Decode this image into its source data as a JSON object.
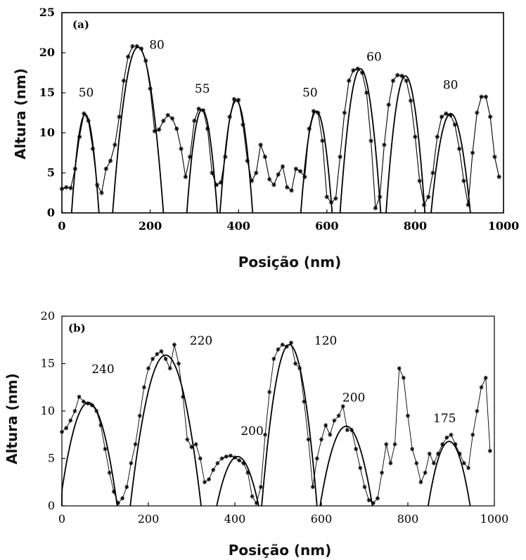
{
  "chart_data": [
    {
      "type": "scatter",
      "panel_label": "(a)",
      "xlabel": "Posição (nm)",
      "ylabel": "Altura (nm)",
      "xlim": [
        0,
        1000
      ],
      "ylim": [
        0,
        25
      ],
      "xticks": [
        0,
        200,
        400,
        600,
        800,
        1000
      ],
      "yticks": [
        0,
        5,
        10,
        15,
        20,
        25
      ],
      "grid": false,
      "series": [
        {
          "kind": "measured-points",
          "x": [
            0,
            10,
            20,
            30,
            40,
            50,
            60,
            70,
            80,
            90,
            100,
            110,
            120,
            130,
            140,
            150,
            160,
            170,
            180,
            190,
            200,
            210,
            220,
            230,
            240,
            250,
            260,
            270,
            280,
            290,
            300,
            310,
            320,
            330,
            340,
            350,
            360,
            370,
            380,
            390,
            400,
            410,
            420,
            430,
            440,
            450,
            460,
            470,
            480,
            490,
            500,
            510,
            520,
            530,
            540,
            550,
            560,
            570,
            580,
            590,
            600,
            610,
            620,
            630,
            640,
            650,
            660,
            670,
            680,
            690,
            700,
            710,
            720,
            730,
            740,
            750,
            760,
            770,
            780,
            790,
            800,
            810,
            820,
            830,
            840,
            850,
            860,
            870,
            880,
            890,
            900,
            910,
            920,
            930,
            940,
            950,
            960,
            970,
            980,
            990
          ],
          "y": [
            3,
            3.2,
            3.1,
            5.5,
            9.5,
            12.4,
            11.5,
            8,
            3.5,
            2.5,
            5.5,
            6.5,
            8.5,
            12,
            16.5,
            19.5,
            20.8,
            20.8,
            20.5,
            19,
            15.5,
            10.2,
            10.4,
            11.5,
            12.2,
            11.8,
            10.5,
            8,
            4.5,
            7,
            11.5,
            13,
            12.8,
            10.5,
            5,
            3.5,
            3.8,
            7,
            12,
            14.2,
            14.1,
            11,
            6.5,
            4,
            5,
            8.5,
            7,
            4.2,
            3.5,
            4.8,
            5.8,
            3.2,
            2.8,
            5.5,
            5.2,
            4.5,
            10.5,
            12.7,
            12.5,
            9,
            2,
            1.3,
            1.8,
            7,
            12.5,
            16.5,
            17.8,
            18,
            17.5,
            15,
            9,
            0.6,
            2,
            8.5,
            13.5,
            16.5,
            17.2,
            17.1,
            16.5,
            14,
            9.5,
            4,
            1,
            2,
            5,
            9.5,
            12,
            12.4,
            12.2,
            11,
            8,
            4,
            1,
            7.5,
            12.5,
            14.5,
            14.5,
            12,
            7,
            4.5
          ]
        },
        {
          "kind": "fitted-arcs",
          "arcs": [
            {
              "x_start": 22,
              "x_end": 84,
              "peak": 12.3
            },
            {
              "x_start": 115,
              "x_end": 230,
              "peak": 20.7
            },
            {
              "x_start": 283,
              "x_end": 352,
              "peak": 12.9
            },
            {
              "x_start": 358,
              "x_end": 432,
              "peak": 14.0
            },
            {
              "x_start": 541,
              "x_end": 612,
              "peak": 12.7
            },
            {
              "x_start": 630,
              "x_end": 722,
              "peak": 18.0
            },
            {
              "x_start": 734,
              "x_end": 822,
              "peak": 17.1
            },
            {
              "x_start": 836,
              "x_end": 925,
              "peak": 12.4
            }
          ]
        }
      ],
      "annotations": [
        {
          "text": "50",
          "x": 55,
          "y": 14.5
        },
        {
          "text": "80",
          "x": 215,
          "y": 20.5
        },
        {
          "text": "55",
          "x": 318,
          "y": 15.0
        },
        {
          "text": "50",
          "x": 562,
          "y": 14.5
        },
        {
          "text": "60",
          "x": 707,
          "y": 19.0
        },
        {
          "text": "80",
          "x": 880,
          "y": 15.5
        }
      ]
    },
    {
      "type": "scatter",
      "panel_label": "(b)",
      "xlabel": "Posição (nm)",
      "ylabel": "Altura (nm)",
      "xlim": [
        0,
        1000
      ],
      "ylim": [
        0,
        20
      ],
      "xticks": [
        0,
        200,
        400,
        600,
        800,
        1000
      ],
      "yticks": [
        0,
        5,
        10,
        15,
        20
      ],
      "grid": false,
      "series": [
        {
          "kind": "measured-points",
          "x": [
            0,
            10,
            20,
            30,
            40,
            50,
            60,
            70,
            80,
            90,
            100,
            110,
            120,
            130,
            140,
            150,
            160,
            170,
            180,
            190,
            200,
            210,
            220,
            230,
            240,
            250,
            260,
            270,
            280,
            290,
            300,
            310,
            320,
            330,
            340,
            350,
            360,
            370,
            380,
            390,
            400,
            410,
            420,
            430,
            440,
            450,
            460,
            470,
            480,
            490,
            500,
            510,
            520,
            530,
            540,
            550,
            560,
            570,
            580,
            590,
            600,
            610,
            620,
            630,
            640,
            650,
            660,
            670,
            680,
            690,
            700,
            710,
            720,
            730,
            740,
            750,
            760,
            770,
            780,
            790,
            800,
            810,
            820,
            830,
            840,
            850,
            860,
            870,
            880,
            890,
            900,
            910,
            920,
            930,
            940,
            950,
            960,
            970,
            980,
            990
          ],
          "y": [
            7.8,
            8.2,
            9,
            10,
            11.5,
            11,
            10.8,
            10.6,
            10,
            8.5,
            6,
            3.5,
            1.5,
            0.3,
            0.8,
            2,
            4.5,
            6.5,
            9.5,
            12.5,
            14.5,
            15.5,
            16,
            16.3,
            15.5,
            14.5,
            17,
            15,
            11.5,
            7,
            6.2,
            6.5,
            5,
            2.5,
            2.8,
            3.8,
            4.5,
            5,
            5.2,
            5.3,
            5.1,
            4.8,
            4.5,
            3.5,
            1,
            0.3,
            2,
            7.5,
            12,
            15.5,
            16.5,
            17,
            16.8,
            17.2,
            15,
            14.5,
            11,
            7,
            2,
            5,
            7,
            8.5,
            7.5,
            9,
            9.5,
            10.5,
            8,
            8,
            6,
            4,
            2,
            0.6,
            0.3,
            0.8,
            3.5,
            6.5,
            4.5,
            6.5,
            14.5,
            13.5,
            9.5,
            6,
            4.5,
            2.5,
            3.5,
            5.5,
            4.5,
            5.5,
            6.5,
            7.2,
            7.5,
            6.5,
            5.5,
            4.5,
            4,
            7.5,
            10,
            12.5,
            13.5,
            5.8
          ]
        },
        {
          "kind": "fitted-arcs",
          "arcs": [
            {
              "x_start": -5,
              "x_end": 128,
              "peak": 10.9
            },
            {
              "x_start": 158,
              "x_end": 322,
              "peak": 15.9
            },
            {
              "x_start": 358,
              "x_end": 455,
              "peak": 5.2
            },
            {
              "x_start": 462,
              "x_end": 590,
              "peak": 17.0
            },
            {
              "x_start": 597,
              "x_end": 718,
              "peak": 8.4
            },
            {
              "x_start": 847,
              "x_end": 944,
              "peak": 6.8
            }
          ]
        }
      ],
      "annotations": [
        {
          "text": "240",
          "x": 95,
          "y": 14.0
        },
        {
          "text": "220",
          "x": 322,
          "y": 17.0
        },
        {
          "text": "200",
          "x": 440,
          "y": 7.5
        },
        {
          "text": "120",
          "x": 610,
          "y": 17.0
        },
        {
          "text": "200",
          "x": 675,
          "y": 11.0
        },
        {
          "text": "175",
          "x": 885,
          "y": 8.8
        }
      ]
    }
  ]
}
